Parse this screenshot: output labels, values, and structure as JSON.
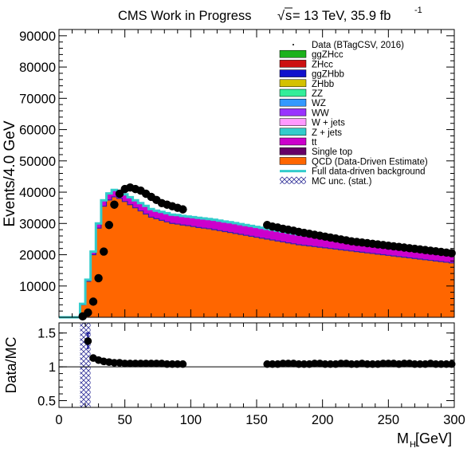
{
  "header": {
    "label": "CMS Work in Progress",
    "energy_sqrt": "√",
    "energy_s": "s",
    "energy_text": " = 13 TeV, 35.9 fb",
    "energy_exp": "-1"
  },
  "chart_data": [
    {
      "type": "stacked-histogram",
      "ylabel": "Events/4.0 GeV",
      "xlim": [
        0,
        300
      ],
      "ylim": [
        0,
        92000
      ],
      "yticks": [
        "10000",
        "20000",
        "30000",
        "40000",
        "50000",
        "60000",
        "70000",
        "80000",
        "90000"
      ],
      "ytick_values": [
        10000,
        20000,
        30000,
        40000,
        50000,
        60000,
        70000,
        80000,
        90000
      ],
      "bin_width": 4,
      "bin_edges_start": 0,
      "qcd": [
        0,
        0,
        0,
        0,
        4000,
        11500,
        20000,
        28500,
        35500,
        37500,
        38500,
        38000,
        37000,
        36000,
        35000,
        34000,
        33000,
        32000,
        31500,
        31000,
        30500,
        30000,
        29800,
        29500,
        29300,
        29000,
        28700,
        28500,
        28300,
        28000,
        27700,
        27400,
        27100,
        26800,
        26500,
        26200,
        25900,
        25600,
        25300,
        25000,
        24700,
        24400,
        24100,
        23800,
        23500,
        23200,
        23000,
        22800,
        22600,
        22400,
        22200,
        22000,
        21800,
        21600,
        21400,
        21200,
        21000,
        20800,
        20600,
        20400,
        20200,
        20000,
        19800,
        19600,
        19400,
        19200,
        19000,
        18800,
        18600,
        18400,
        18200,
        18000,
        17800,
        17600,
        17400
      ],
      "ttbar": [
        0,
        0,
        0,
        0,
        200,
        400,
        800,
        1200,
        1600,
        1800,
        1900,
        1950,
        2000,
        2050,
        2100,
        2150,
        2200,
        2250,
        2300,
        2350,
        2400,
        2450,
        2500,
        2550,
        2600,
        2650,
        2700,
        2750,
        2800,
        2850,
        2900,
        2950,
        3000,
        3000,
        3000,
        3000,
        3000,
        3000,
        3000,
        3000,
        3000,
        3000,
        3000,
        3000,
        3000,
        3000,
        3000,
        3000,
        3000,
        3000,
        3000,
        3000,
        3000,
        3000,
        3000,
        3000,
        3000,
        3000,
        3000,
        3000,
        3000,
        3000,
        3000,
        3000,
        3000,
        3000,
        3000,
        3000,
        3000,
        3000,
        3000,
        3000,
        3000,
        3000,
        3000
      ],
      "background_total": [
        0,
        0,
        0,
        0,
        4300,
        12000,
        21000,
        30000,
        37400,
        39600,
        40700,
        40300,
        39300,
        38400,
        37400,
        36500,
        35600,
        34600,
        34100,
        33700,
        33300,
        32800,
        32700,
        32400,
        32200,
        32000,
        31800,
        31600,
        31400,
        31200,
        30900,
        30600,
        30400,
        30100,
        29800,
        29500,
        29200,
        28900,
        28600,
        28300,
        28000,
        27700,
        27400,
        27100,
        26800,
        26500,
        26300,
        26100,
        25900,
        25700,
        25500,
        25300,
        25100,
        24900,
        24700,
        24500,
        24300,
        24100,
        23900,
        23700,
        23500,
        23300,
        23100,
        22900,
        22700,
        22500,
        22300,
        22100,
        21900,
        21700,
        21500,
        21300,
        21100,
        20900,
        20700
      ],
      "data_points": [
        [
          18,
          300
        ],
        [
          22,
          1500
        ],
        [
          26,
          5000
        ],
        [
          30,
          12500
        ],
        [
          34,
          21000
        ],
        [
          38,
          29500
        ],
        [
          42,
          36000
        ],
        [
          46,
          39500
        ],
        [
          50,
          41000
        ],
        [
          54,
          41500
        ],
        [
          58,
          41000
        ],
        [
          62,
          40500
        ],
        [
          66,
          39500
        ],
        [
          70,
          38500
        ],
        [
          74,
          37500
        ],
        [
          78,
          36500
        ],
        [
          82,
          36000
        ],
        [
          86,
          35500
        ],
        [
          90,
          35000
        ],
        [
          94,
          34500
        ],
        [
          158,
          29500
        ],
        [
          162,
          29000
        ],
        [
          166,
          28700
        ],
        [
          170,
          28300
        ],
        [
          174,
          28000
        ],
        [
          178,
          27700
        ],
        [
          182,
          27300
        ],
        [
          186,
          27000
        ],
        [
          190,
          26700
        ],
        [
          194,
          26400
        ],
        [
          198,
          26100
        ],
        [
          202,
          25800
        ],
        [
          206,
          25500
        ],
        [
          210,
          25200
        ],
        [
          214,
          24900
        ],
        [
          218,
          24600
        ],
        [
          222,
          24300
        ],
        [
          226,
          24100
        ],
        [
          230,
          23900
        ],
        [
          234,
          23700
        ],
        [
          238,
          23500
        ],
        [
          242,
          23300
        ],
        [
          246,
          23100
        ],
        [
          250,
          22900
        ],
        [
          254,
          22700
        ],
        [
          258,
          22500
        ],
        [
          262,
          22300
        ],
        [
          266,
          22100
        ],
        [
          270,
          21900
        ],
        [
          274,
          21700
        ],
        [
          278,
          21500
        ],
        [
          282,
          21300
        ],
        [
          286,
          21100
        ],
        [
          290,
          20900
        ],
        [
          294,
          20700
        ],
        [
          298,
          20500
        ]
      ],
      "legend_position": "top-right",
      "legend": [
        {
          "label": "Data (BTagCSV, 2016)",
          "style": "marker",
          "color": "#000000"
        },
        {
          "label": "ggZHcc",
          "style": "box",
          "color": "#1cb21c"
        },
        {
          "label": "ZHcc",
          "style": "box",
          "color": "#cc1111"
        },
        {
          "label": "ggZHbb",
          "style": "box",
          "color": "#1111cc"
        },
        {
          "label": "ZHbb",
          "style": "box",
          "color": "#d4c100"
        },
        {
          "label": "ZZ",
          "style": "box",
          "color": "#33ee99"
        },
        {
          "label": "WZ",
          "style": "box",
          "color": "#3399ff"
        },
        {
          "label": "WW",
          "style": "box",
          "color": "#9933ff"
        },
        {
          "label": "W + jets",
          "style": "box",
          "color": "#ff99ff"
        },
        {
          "label": "Z + jets",
          "style": "box",
          "color": "#33cccc"
        },
        {
          "label": "tt",
          "style": "box",
          "color": "#cc00cc"
        },
        {
          "label": "Single top",
          "style": "box",
          "color": "#660066"
        },
        {
          "label": "QCD (Data-Driven Estimate)",
          "style": "box",
          "color": "#ff6600"
        },
        {
          "label": "Full data-driven background",
          "style": "line",
          "color": "#33cccc"
        },
        {
          "label": "MC unc. (stat.)",
          "style": "hatch",
          "color": "#1a1a99"
        }
      ]
    },
    {
      "type": "ratio",
      "ylabel": "Data/MC",
      "xlabel_main": "M",
      "xlabel_sub": "H",
      "xlabel_unit": " [GeV]",
      "xlim": [
        0,
        300
      ],
      "ylim": [
        0.4,
        1.65
      ],
      "yticks": [
        "0.5",
        "1",
        "1.5"
      ],
      "ytick_values": [
        0.5,
        1,
        1.5
      ],
      "xticks": [
        "0",
        "50",
        "100",
        "150",
        "200",
        "250",
        "300"
      ],
      "xtick_values": [
        0,
        50,
        100,
        150,
        200,
        250,
        300
      ],
      "reference_line": 1,
      "points": [
        [
          22,
          1.38,
          0.12
        ],
        [
          26,
          1.13,
          0
        ],
        [
          30,
          1.1,
          0
        ],
        [
          34,
          1.08,
          0
        ],
        [
          38,
          1.07,
          0
        ],
        [
          42,
          1.06,
          0
        ],
        [
          46,
          1.06,
          0
        ],
        [
          50,
          1.05,
          0
        ],
        [
          54,
          1.05,
          0
        ],
        [
          58,
          1.05,
          0
        ],
        [
          62,
          1.05,
          0
        ],
        [
          66,
          1.05,
          0
        ],
        [
          70,
          1.05,
          0
        ],
        [
          74,
          1.05,
          0
        ],
        [
          78,
          1.05,
          0
        ],
        [
          82,
          1.04,
          0
        ],
        [
          86,
          1.04,
          0
        ],
        [
          90,
          1.04,
          0
        ],
        [
          94,
          1.04,
          0
        ],
        [
          158,
          1.04,
          0
        ],
        [
          162,
          1.04,
          0
        ],
        [
          166,
          1.04,
          0
        ],
        [
          170,
          1.05,
          0
        ],
        [
          174,
          1.05,
          0
        ],
        [
          178,
          1.05,
          0
        ],
        [
          182,
          1.04,
          0
        ],
        [
          186,
          1.04,
          0
        ],
        [
          190,
          1.04,
          0
        ],
        [
          194,
          1.05,
          0
        ],
        [
          198,
          1.05,
          0
        ],
        [
          202,
          1.04,
          0
        ],
        [
          206,
          1.04,
          0
        ],
        [
          210,
          1.04,
          0
        ],
        [
          214,
          1.05,
          0
        ],
        [
          218,
          1.05,
          0
        ],
        [
          222,
          1.04,
          0
        ],
        [
          226,
          1.04,
          0
        ],
        [
          230,
          1.05,
          0
        ],
        [
          234,
          1.04,
          0
        ],
        [
          238,
          1.04,
          0
        ],
        [
          242,
          1.04,
          0
        ],
        [
          246,
          1.05,
          0
        ],
        [
          250,
          1.05,
          0
        ],
        [
          254,
          1.05,
          0
        ],
        [
          258,
          1.04,
          0
        ],
        [
          262,
          1.05,
          0
        ],
        [
          266,
          1.05,
          0
        ],
        [
          270,
          1.04,
          0
        ],
        [
          274,
          1.04,
          0
        ],
        [
          278,
          1.04,
          0
        ],
        [
          282,
          1.05,
          0
        ],
        [
          286,
          1.04,
          0
        ],
        [
          290,
          1.04,
          0
        ],
        [
          294,
          1.04,
          0
        ],
        [
          298,
          1.04,
          0
        ]
      ],
      "unc_band_bins": [
        [
          16,
          20
        ],
        [
          20,
          24
        ]
      ]
    }
  ]
}
